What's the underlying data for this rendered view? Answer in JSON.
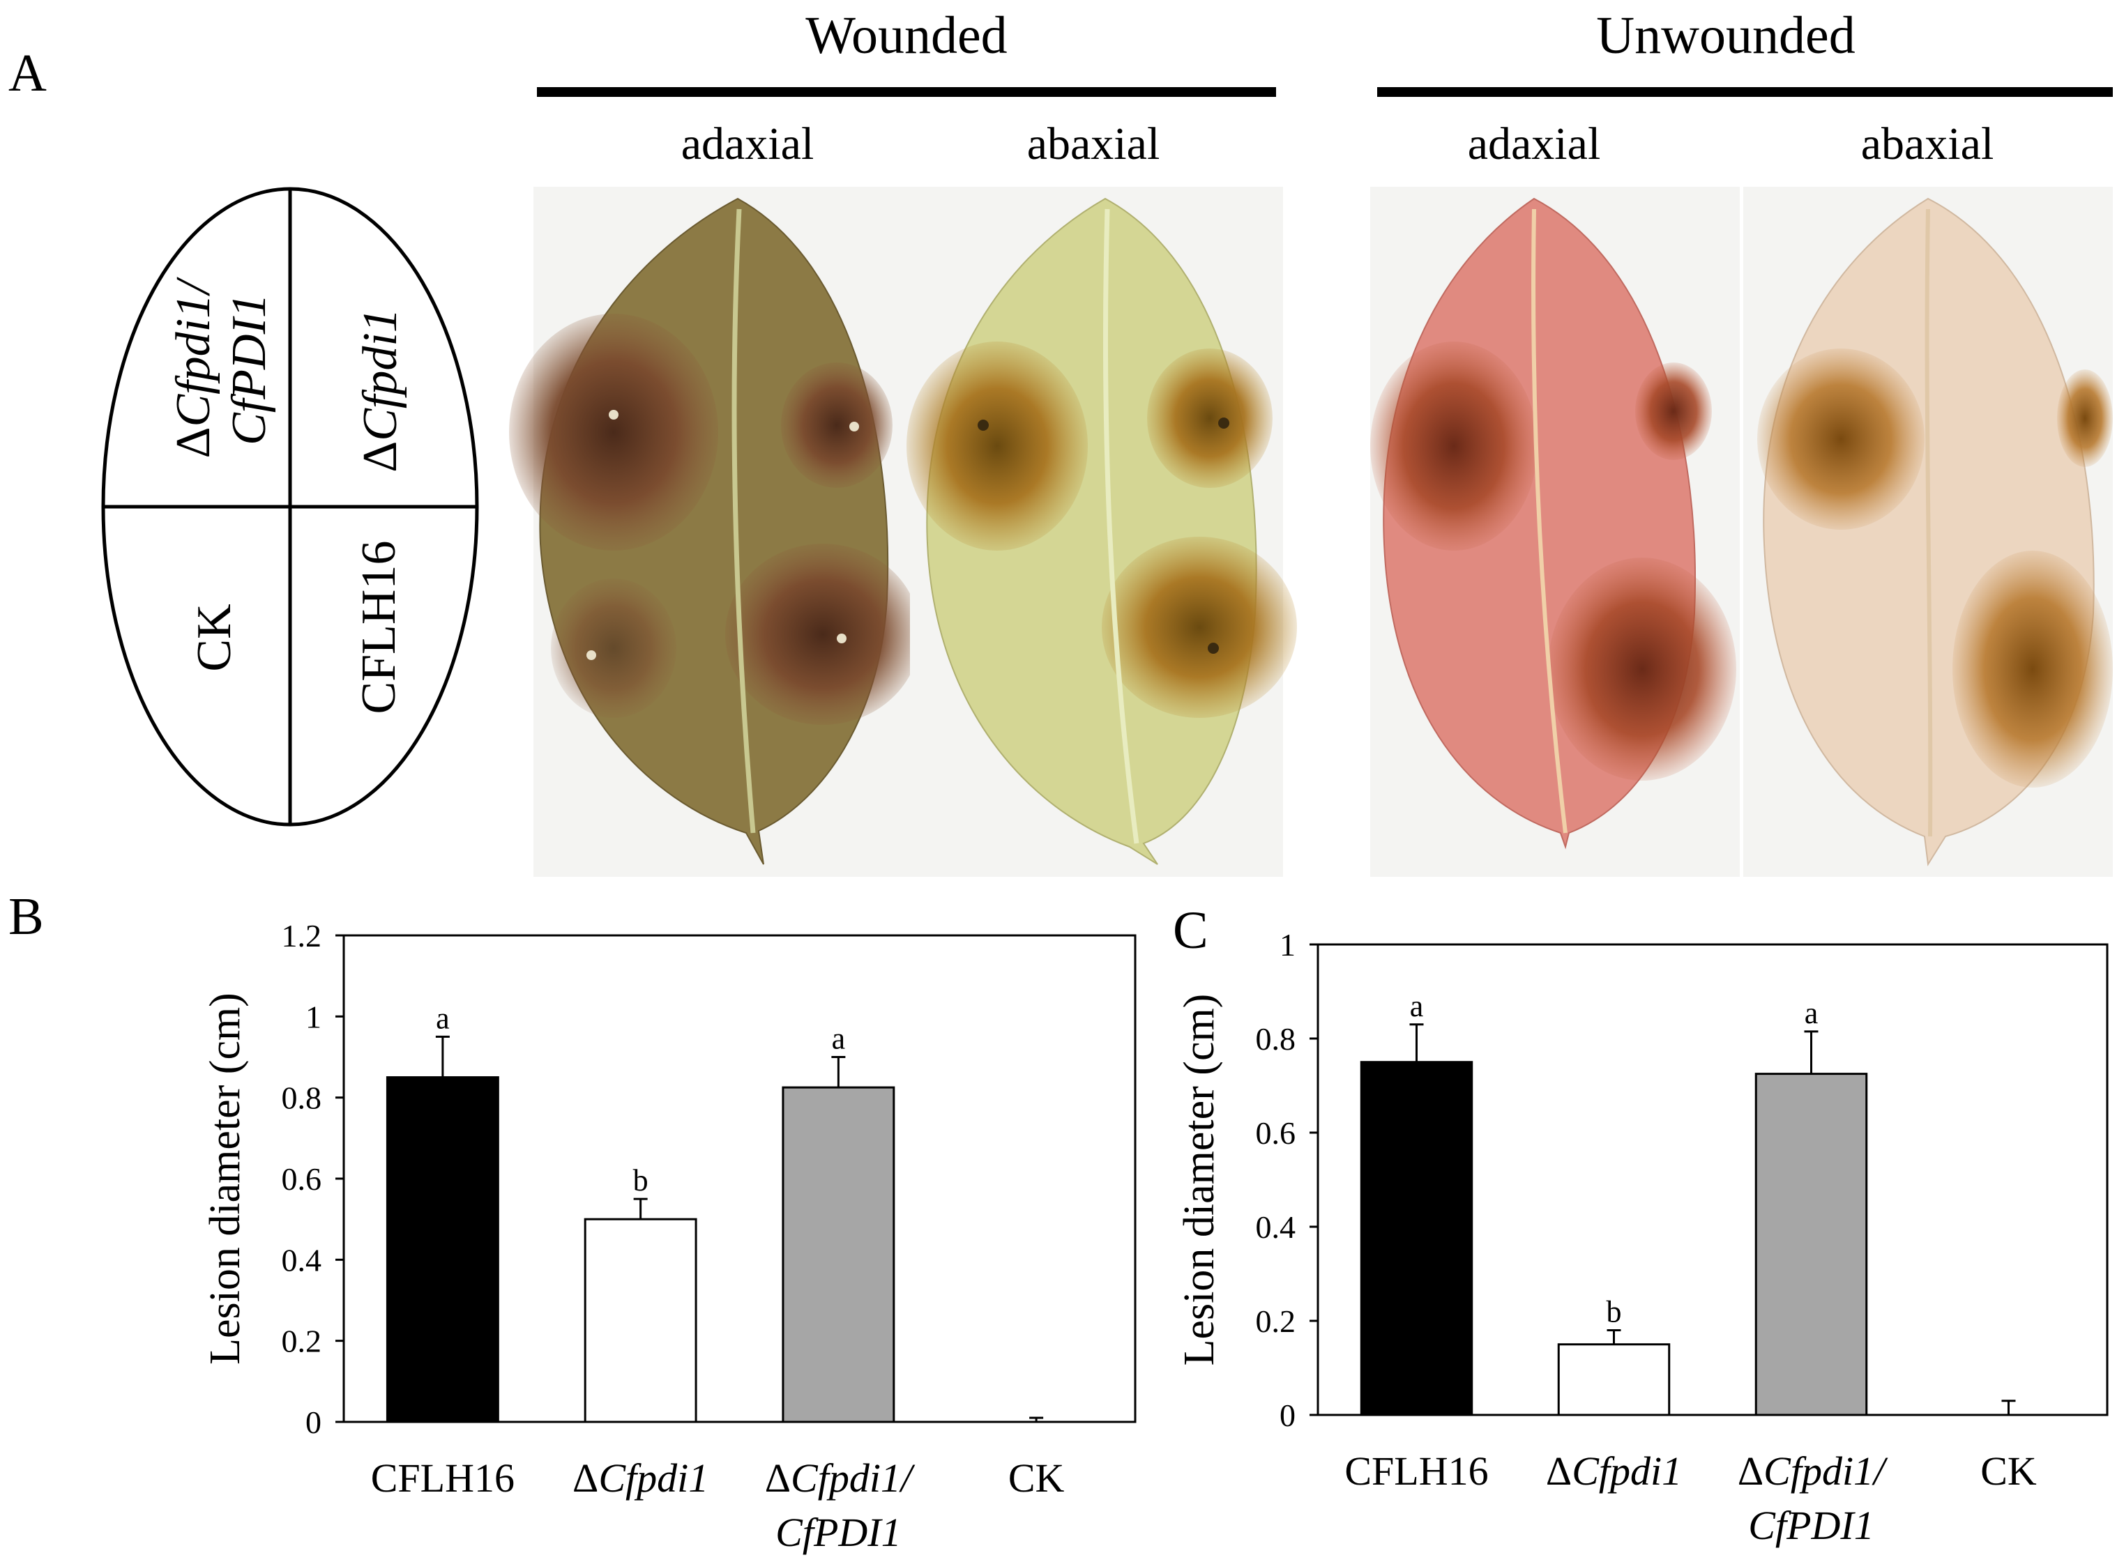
{
  "panels": {
    "a_label": "A",
    "b_label": "B",
    "c_label": "C"
  },
  "groups": {
    "wounded": "Wounded",
    "unwounded": "Unwounded"
  },
  "sides": {
    "wounded_adaxial": "adaxial",
    "wounded_abaxial": "abaxial",
    "unwounded_adaxial": "adaxial",
    "unwounded_abaxial": "abaxial"
  },
  "schematic": {
    "top_left_prefix": "Δ",
    "top_left_italic_1": "Cfpdi1/",
    "top_left_italic_2": "CfPDI1",
    "top_right_prefix": "Δ",
    "top_right_italic": "Cfpdi1",
    "bottom_left": "CK",
    "bottom_right": "CFLH16"
  },
  "colors": {
    "wt_bar": "#000000",
    "mutant_bar": "#ffffff",
    "complement_bar": "#a6a6a6",
    "wounded_lesion": "#7a4a2e",
    "unwounded_lesion": "#9b3a25"
  },
  "chart_data": [
    {
      "panel": "B",
      "type": "bar",
      "ylabel": "Lesion diameter (cm)",
      "xlabel": "",
      "ylim": [
        0,
        1.2
      ],
      "yticks": [
        "0",
        "0.2",
        "0.4",
        "0.6",
        "0.8",
        "1",
        "1.2"
      ],
      "categories": [
        {
          "prefix": "",
          "italic": "",
          "plain": "CFLH16",
          "line2": ""
        },
        {
          "prefix": "Δ",
          "italic": "Cfpdi1",
          "plain": "",
          "line2": ""
        },
        {
          "prefix": "Δ",
          "italic": "Cfpdi1/",
          "plain": "",
          "line2": "CfPDI1"
        },
        {
          "prefix": "",
          "italic": "",
          "plain": "CK",
          "line2": ""
        }
      ],
      "values": [
        0.85,
        0.5,
        0.825,
        0
      ],
      "errors": [
        0.1,
        0.05,
        0.075,
        0.01
      ],
      "letters": [
        "a",
        "b",
        "a",
        ""
      ]
    },
    {
      "panel": "C",
      "type": "bar",
      "ylabel": "Lesion diameter (cm)",
      "xlabel": "",
      "ylim": [
        0,
        1
      ],
      "yticks": [
        "0",
        "0.2",
        "0.4",
        "0.6",
        "0.8",
        "1"
      ],
      "categories": [
        {
          "prefix": "",
          "italic": "",
          "plain": "CFLH16",
          "line2": ""
        },
        {
          "prefix": "Δ",
          "italic": "Cfpdi1",
          "plain": "",
          "line2": ""
        },
        {
          "prefix": "Δ",
          "italic": "Cfpdi1/",
          "plain": "",
          "line2": "CfPDI1"
        },
        {
          "prefix": "",
          "italic": "",
          "plain": "CK",
          "line2": ""
        }
      ],
      "values": [
        0.75,
        0.15,
        0.725,
        0
      ],
      "errors": [
        0.08,
        0.03,
        0.09,
        0.03
      ],
      "letters": [
        "a",
        "b",
        "a",
        ""
      ]
    }
  ]
}
